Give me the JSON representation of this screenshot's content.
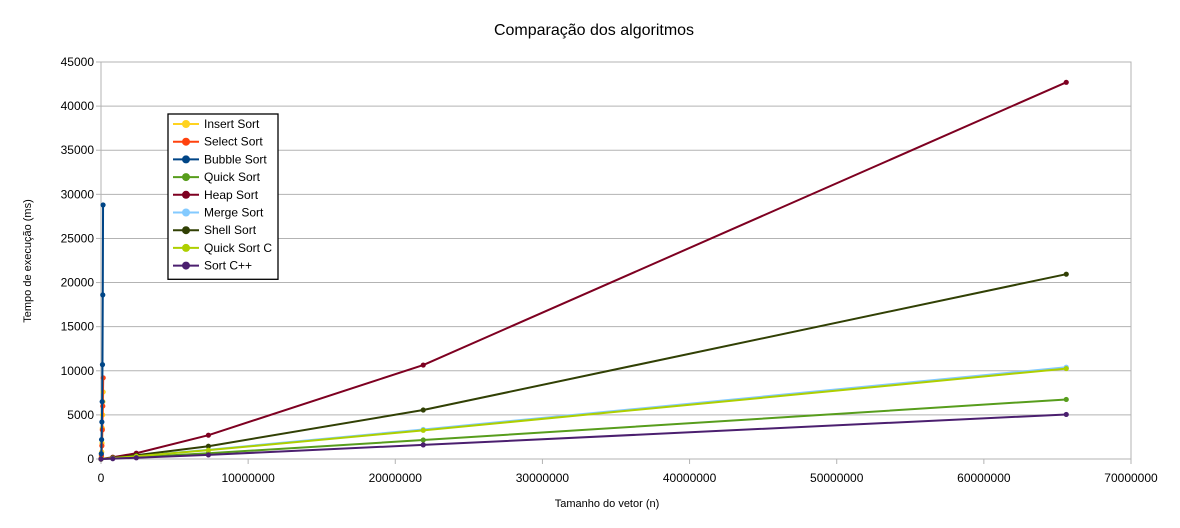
{
  "chart_data": {
    "type": "line",
    "title": "Comparação dos algoritmos",
    "xlabel": "Tamanho do vetor (n)",
    "ylabel": "Tempo de execução (ms)",
    "xlim": [
      0,
      70000000
    ],
    "ylim": [
      0,
      45000
    ],
    "xticks": [
      0,
      10000000,
      20000000,
      30000000,
      40000000,
      50000000,
      60000000,
      70000000
    ],
    "xtick_labels": [
      "0",
      "10000000",
      "20000000",
      "30000000",
      "40000000",
      "50000000",
      "60000000",
      "70000000"
    ],
    "yticks": [
      0,
      5000,
      10000,
      15000,
      20000,
      25000,
      30000,
      35000,
      40000,
      45000
    ],
    "ytick_labels": [
      "0",
      "5000",
      "10000",
      "15000",
      "20000",
      "25000",
      "30000",
      "35000",
      "40000",
      "45000"
    ],
    "grid": "horizontal",
    "legend_position": "top-left",
    "series": [
      {
        "name": "Insert Sort",
        "color": "#ffd320",
        "x": [
          0,
          30000,
          50000,
          70000,
          90000,
          110000,
          130000,
          150000
        ],
        "y": [
          0,
          300,
          800,
          1800,
          3500,
          5000,
          6500,
          7600
        ]
      },
      {
        "name": "Select Sort",
        "color": "#ff420e",
        "x": [
          0,
          30000,
          60000,
          90000,
          120000,
          150000
        ],
        "y": [
          0,
          400,
          1500,
          3300,
          6000,
          9200
        ]
      },
      {
        "name": "Bubble Sort",
        "color": "#004586",
        "x": [
          0,
          20000,
          40000,
          60000,
          80000,
          100000,
          120000,
          140000
        ],
        "y": [
          0,
          600,
          2200,
          4200,
          6500,
          10700,
          18600,
          28800
        ]
      },
      {
        "name": "Quick Sort",
        "color": "#579d1c",
        "x": [
          0,
          800000,
          2400000,
          7300000,
          21900000,
          65600000
        ],
        "y": [
          0,
          60,
          200,
          650,
          2150,
          6750
        ]
      },
      {
        "name": "Heap Sort",
        "color": "#7e0021",
        "x": [
          0,
          800000,
          2400000,
          7300000,
          21900000,
          65600000
        ],
        "y": [
          0,
          200,
          650,
          2700,
          10650,
          42700
        ]
      },
      {
        "name": "Merge Sort",
        "color": "#83caff",
        "x": [
          0,
          800000,
          2400000,
          7300000,
          21900000,
          65600000
        ],
        "y": [
          0,
          100,
          330,
          1050,
          3350,
          10400
        ]
      },
      {
        "name": "Shell Sort",
        "color": "#314004",
        "x": [
          0,
          800000,
          2400000,
          7300000,
          21900000,
          65600000
        ],
        "y": [
          0,
          130,
          420,
          1450,
          5550,
          20950
        ]
      },
      {
        "name": "Quick Sort C",
        "color": "#aecf00",
        "x": [
          0,
          800000,
          2400000,
          7300000,
          21900000,
          65600000
        ],
        "y": [
          0,
          95,
          310,
          1000,
          3250,
          10250
        ]
      },
      {
        "name": "Sort C++",
        "color": "#4b1f6f",
        "x": [
          0,
          800000,
          2400000,
          7300000,
          21900000,
          65600000
        ],
        "y": [
          0,
          45,
          140,
          470,
          1600,
          5050
        ]
      }
    ]
  }
}
